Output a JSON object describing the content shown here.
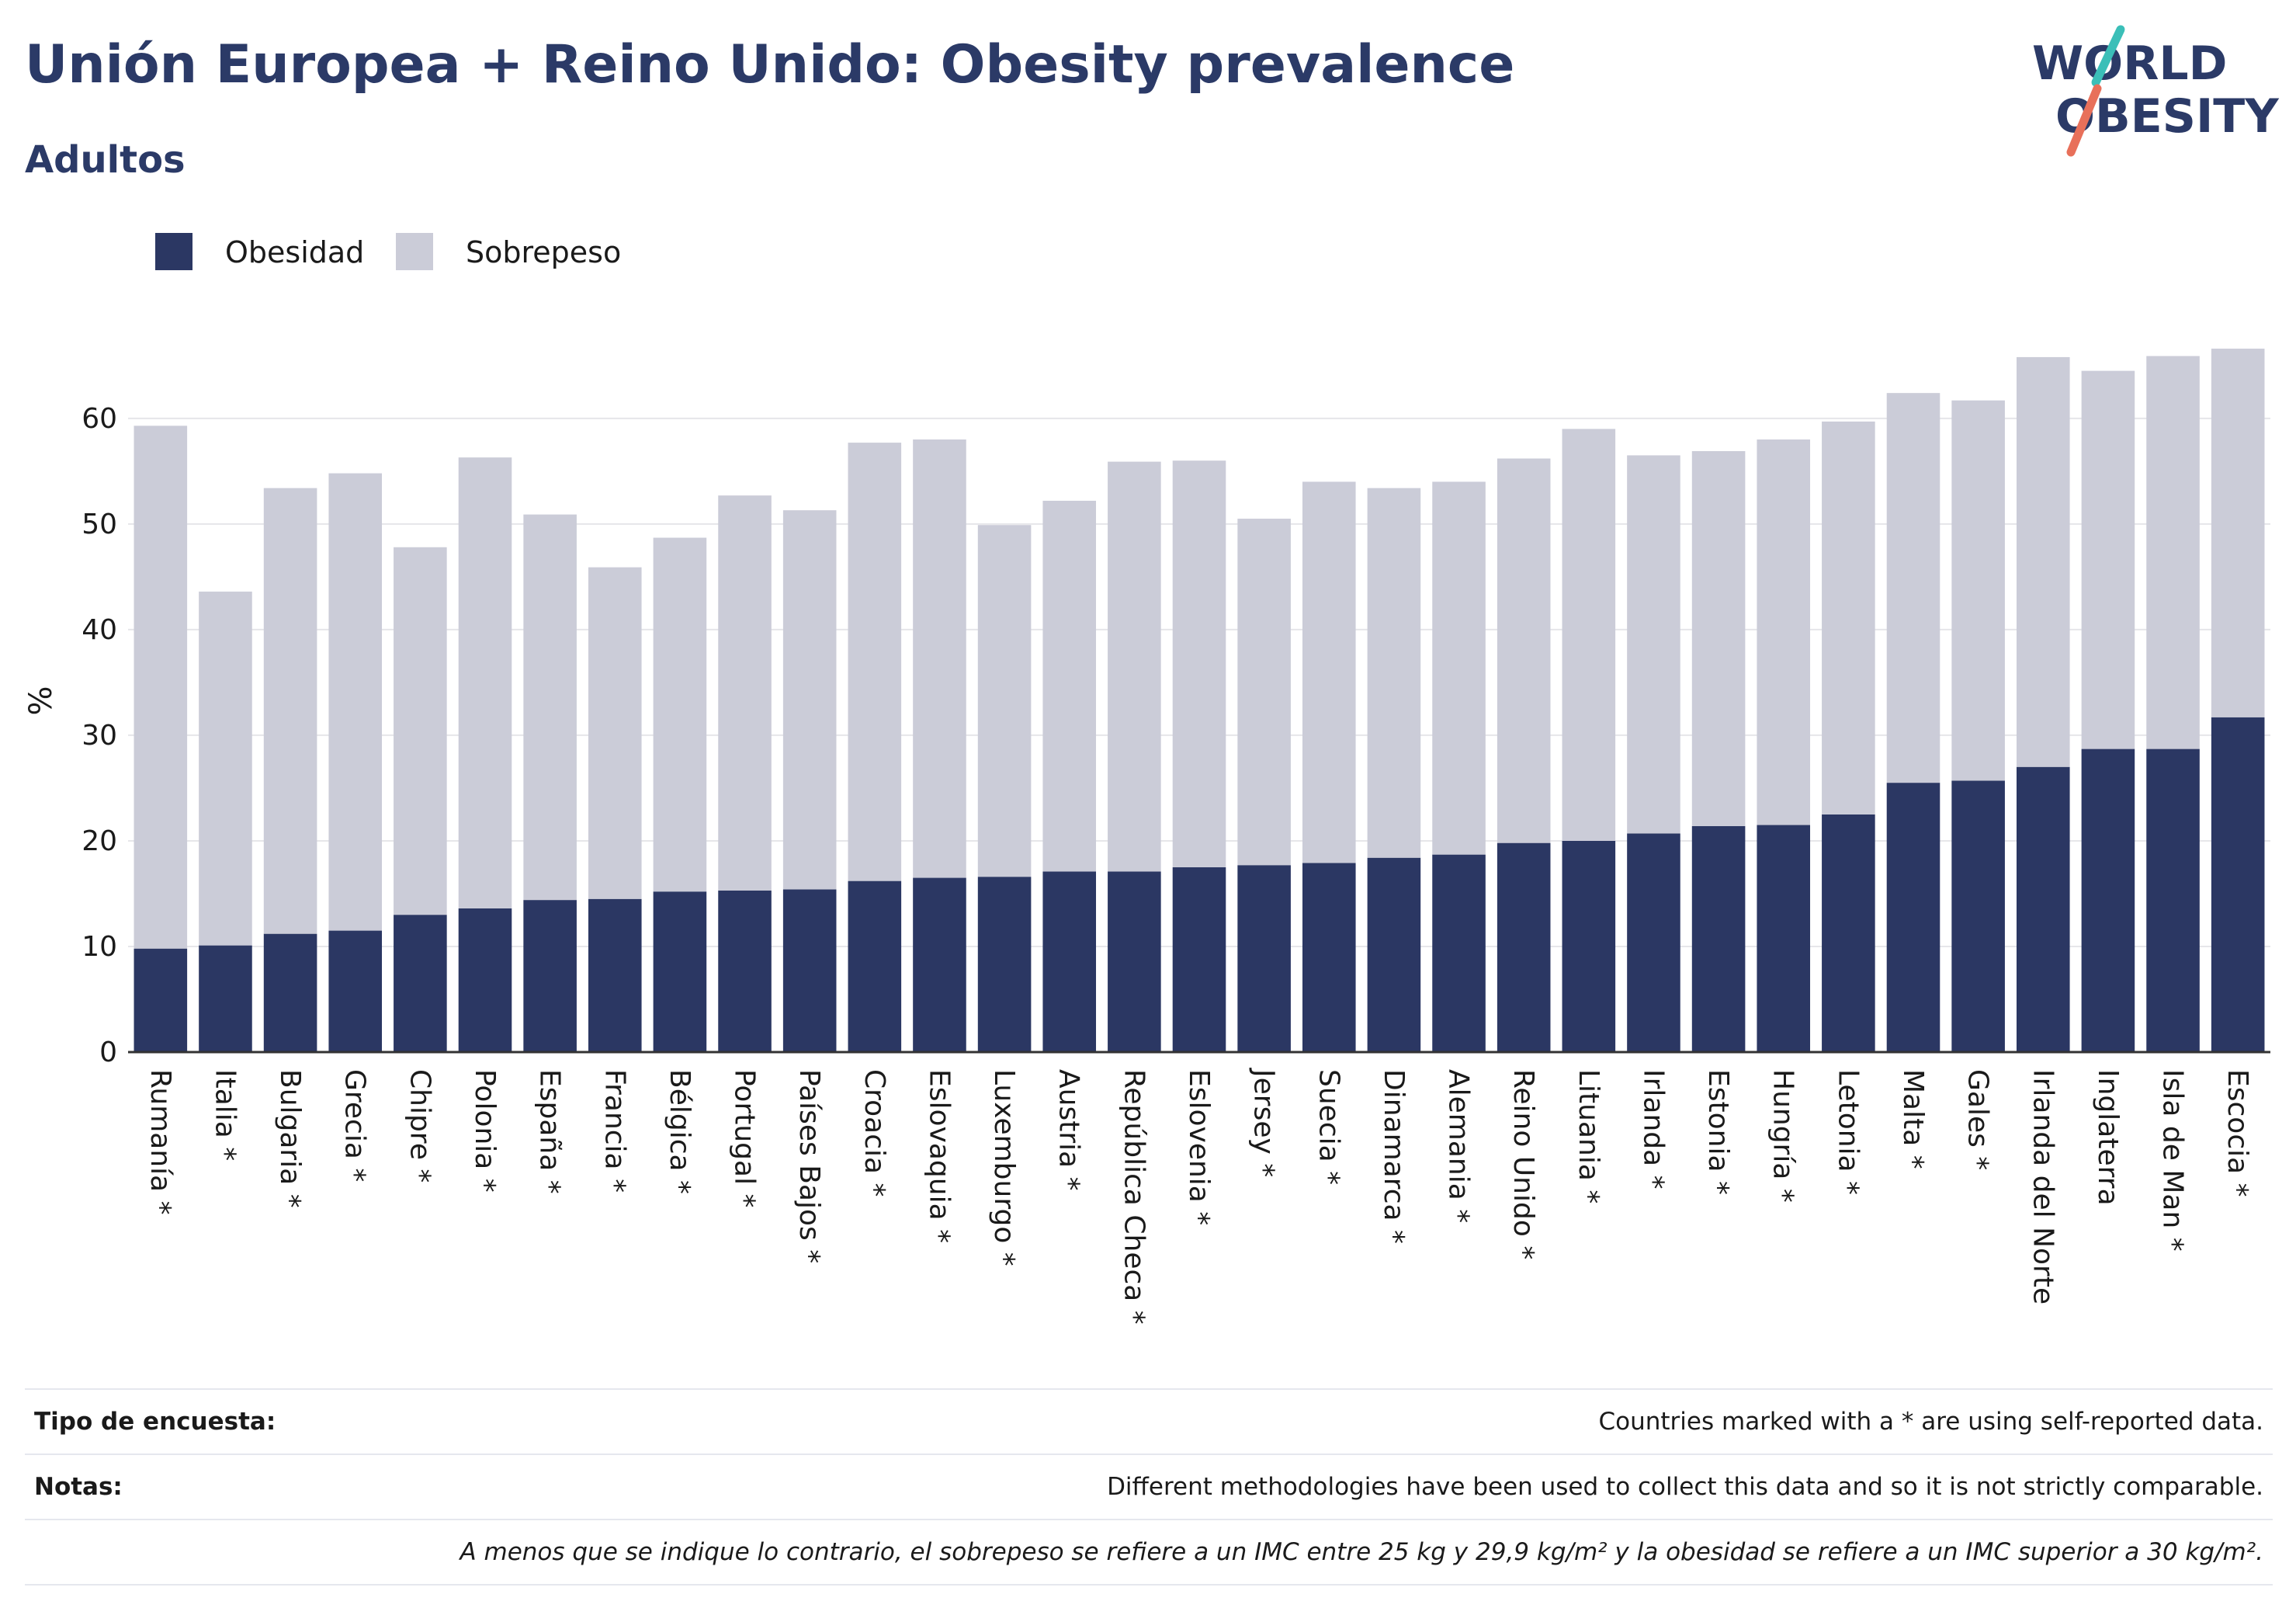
{
  "header": {
    "title": "Unión Europea + Reino Unido: Obesity prevalence",
    "subtitle": "Adultos"
  },
  "logo": {
    "line1": "WORLD",
    "line2": "OBESITY",
    "text_color": "#2b3a67",
    "slash_teal": "#3bbfb8",
    "slash_coral": "#e8705a"
  },
  "colors": {
    "obesidad": "#2b3763",
    "sobrepeso": "#cbccd8",
    "grid": "#e6e6ea",
    "axis": "#333333"
  },
  "chart_data": {
    "type": "bar",
    "stacked": true,
    "ylabel": "%",
    "ylim": [
      0,
      68
    ],
    "yticks": [
      0,
      10,
      20,
      30,
      40,
      50,
      60
    ],
    "grid": true,
    "legend_position": "top-left",
    "categories": [
      "Rumanía *",
      "Italia *",
      "Bulgaria *",
      "Grecia *",
      "Chipre *",
      "Polonia *",
      "España *",
      "Francia *",
      "Bélgica *",
      "Portugal *",
      "Países Bajos *",
      "Croacia *",
      "Eslovaquia *",
      "Luxemburgo *",
      "Austria *",
      "República Checa *",
      "Eslovenia *",
      "Jersey *",
      "Suecia *",
      "Dinamarca *",
      "Alemania *",
      "Reino Unido *",
      "Lituania *",
      "Irlanda *",
      "Estonia *",
      "Hungría *",
      "Letonia *",
      "Malta *",
      "Gales *",
      "Irlanda del Norte",
      "Inglaterra",
      "Isla de Man *",
      "Escocia *"
    ],
    "series": [
      {
        "name": "Obesidad",
        "values": [
          9.8,
          10.1,
          11.2,
          11.5,
          13.0,
          13.6,
          14.4,
          14.5,
          15.2,
          15.3,
          15.4,
          16.2,
          16.5,
          16.6,
          17.1,
          17.1,
          17.5,
          17.7,
          17.9,
          18.4,
          18.7,
          19.8,
          20.0,
          20.7,
          21.4,
          21.5,
          22.5,
          25.5,
          25.7,
          27.0,
          28.7,
          28.7,
          31.7
        ]
      },
      {
        "name": "Sobrepeso",
        "values": [
          49.5,
          33.5,
          42.2,
          43.3,
          34.8,
          42.7,
          36.5,
          31.4,
          33.5,
          37.4,
          35.9,
          41.5,
          41.5,
          33.3,
          35.1,
          38.8,
          38.5,
          32.8,
          36.1,
          35.0,
          35.3,
          36.4,
          39.0,
          35.8,
          35.5,
          36.5,
          37.2,
          36.9,
          36.0,
          38.8,
          35.8,
          37.2,
          34.9
        ]
      }
    ]
  },
  "notes": {
    "survey_key": "Tipo de encuesta:",
    "survey_val": "Countries marked with a * are using self-reported data.",
    "notes_key": "Notas:",
    "notes_val": "Different methodologies have been used to collect this data and so it is not strictly comparable.",
    "definition": "A menos que se indique lo contrario, el sobrepeso se refiere a un IMC entre 25 kg y 29,9 kg/m² y la obesidad se refiere a un IMC superior a 30 kg/m²."
  }
}
